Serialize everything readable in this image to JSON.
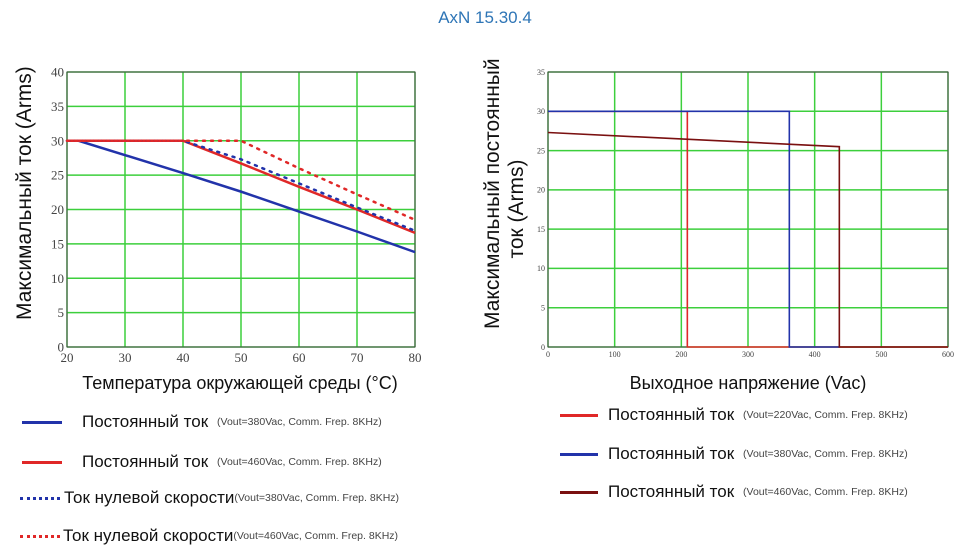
{
  "title": "AxN 15.30.4",
  "colors": {
    "title": "#2e75b6",
    "grid": "#3ccf3c",
    "blue": "#2233aa",
    "red": "#e02828",
    "darkred": "#7a1010"
  },
  "chart_data": [
    {
      "type": "line",
      "xlabel": "Температура окружающей среды (°C)",
      "ylabel": "Максимальный ток (Arms)",
      "xlim": [
        20,
        80
      ],
      "ylim": [
        0,
        40
      ],
      "xticks": [
        20,
        30,
        40,
        50,
        60,
        70,
        80
      ],
      "yticks": [
        0,
        5,
        10,
        15,
        20,
        25,
        30,
        35,
        40
      ],
      "grid": true,
      "legend_position": "bottom",
      "series": [
        {
          "name": "Постоянный ток",
          "note": "(Vout=380Vac, Comm. Frep. 8KHz)",
          "style": "solid",
          "color": "#2233aa",
          "x": [
            20,
            22,
            40,
            50,
            60,
            70,
            80
          ],
          "y": [
            30,
            30,
            25.3,
            22.6,
            19.7,
            16.8,
            13.8
          ]
        },
        {
          "name": "Постоянный ток",
          "note": "(Vout=460Vac, Comm. Frep. 8KHz)",
          "style": "solid",
          "color": "#e02828",
          "x": [
            20,
            40,
            50,
            60,
            70,
            80
          ],
          "y": [
            30,
            30,
            26.7,
            23.3,
            20,
            16.6
          ]
        },
        {
          "name": "Ток нулевой скорости",
          "note": "(Vout=380Vac, Comm. Frep. 8KHz)",
          "style": "dotted",
          "color": "#2233aa",
          "x": [
            20,
            40,
            50,
            60,
            70,
            80
          ],
          "y": [
            30,
            30,
            27.3,
            23.8,
            20.3,
            16.9
          ]
        },
        {
          "name": "Ток нулевой скорости",
          "note": "(Vout=460Vac, Comm. Frep. 8KHz)",
          "style": "dotted",
          "color": "#e02828",
          "x": [
            20,
            50,
            60,
            70,
            80
          ],
          "y": [
            30,
            30,
            26,
            22.2,
            18.5
          ]
        }
      ]
    },
    {
      "type": "line",
      "xlabel": "Выходное напряжение (Vac)",
      "ylabel": "Максимальный постоянный ток (Arms)",
      "ylabel_lines": [
        "Максимальный постоянный",
        "ток (Arms)"
      ],
      "xlim": [
        0,
        600
      ],
      "ylim": [
        0,
        35
      ],
      "xticks": [
        0,
        100,
        200,
        300,
        400,
        500,
        600
      ],
      "yticks": [
        0,
        5,
        10,
        15,
        20,
        25,
        30,
        35
      ],
      "grid": true,
      "legend_position": "bottom",
      "series": [
        {
          "name": "Постоянный ток",
          "note": "(Vout=220Vac, Comm. Frep. 8KHz)",
          "style": "solid",
          "color": "#e02828",
          "x": [
            0,
            209,
            209,
            600
          ],
          "y": [
            30,
            30,
            0,
            0
          ]
        },
        {
          "name": "Постоянный ток",
          "note": "(Vout=380Vac, Comm. Frep. 8KHz)",
          "style": "solid",
          "color": "#2233aa",
          "x": [
            0,
            362,
            362,
            437
          ],
          "y": [
            30,
            30,
            0,
            0
          ]
        },
        {
          "name": "Постоянный ток",
          "note": "(Vout=460Vac, Comm. Frep. 8KHz)",
          "style": "solid",
          "color": "#7a1010",
          "x": [
            0,
            437,
            437,
            600
          ],
          "y": [
            27.3,
            25.5,
            0,
            0
          ]
        }
      ]
    }
  ]
}
